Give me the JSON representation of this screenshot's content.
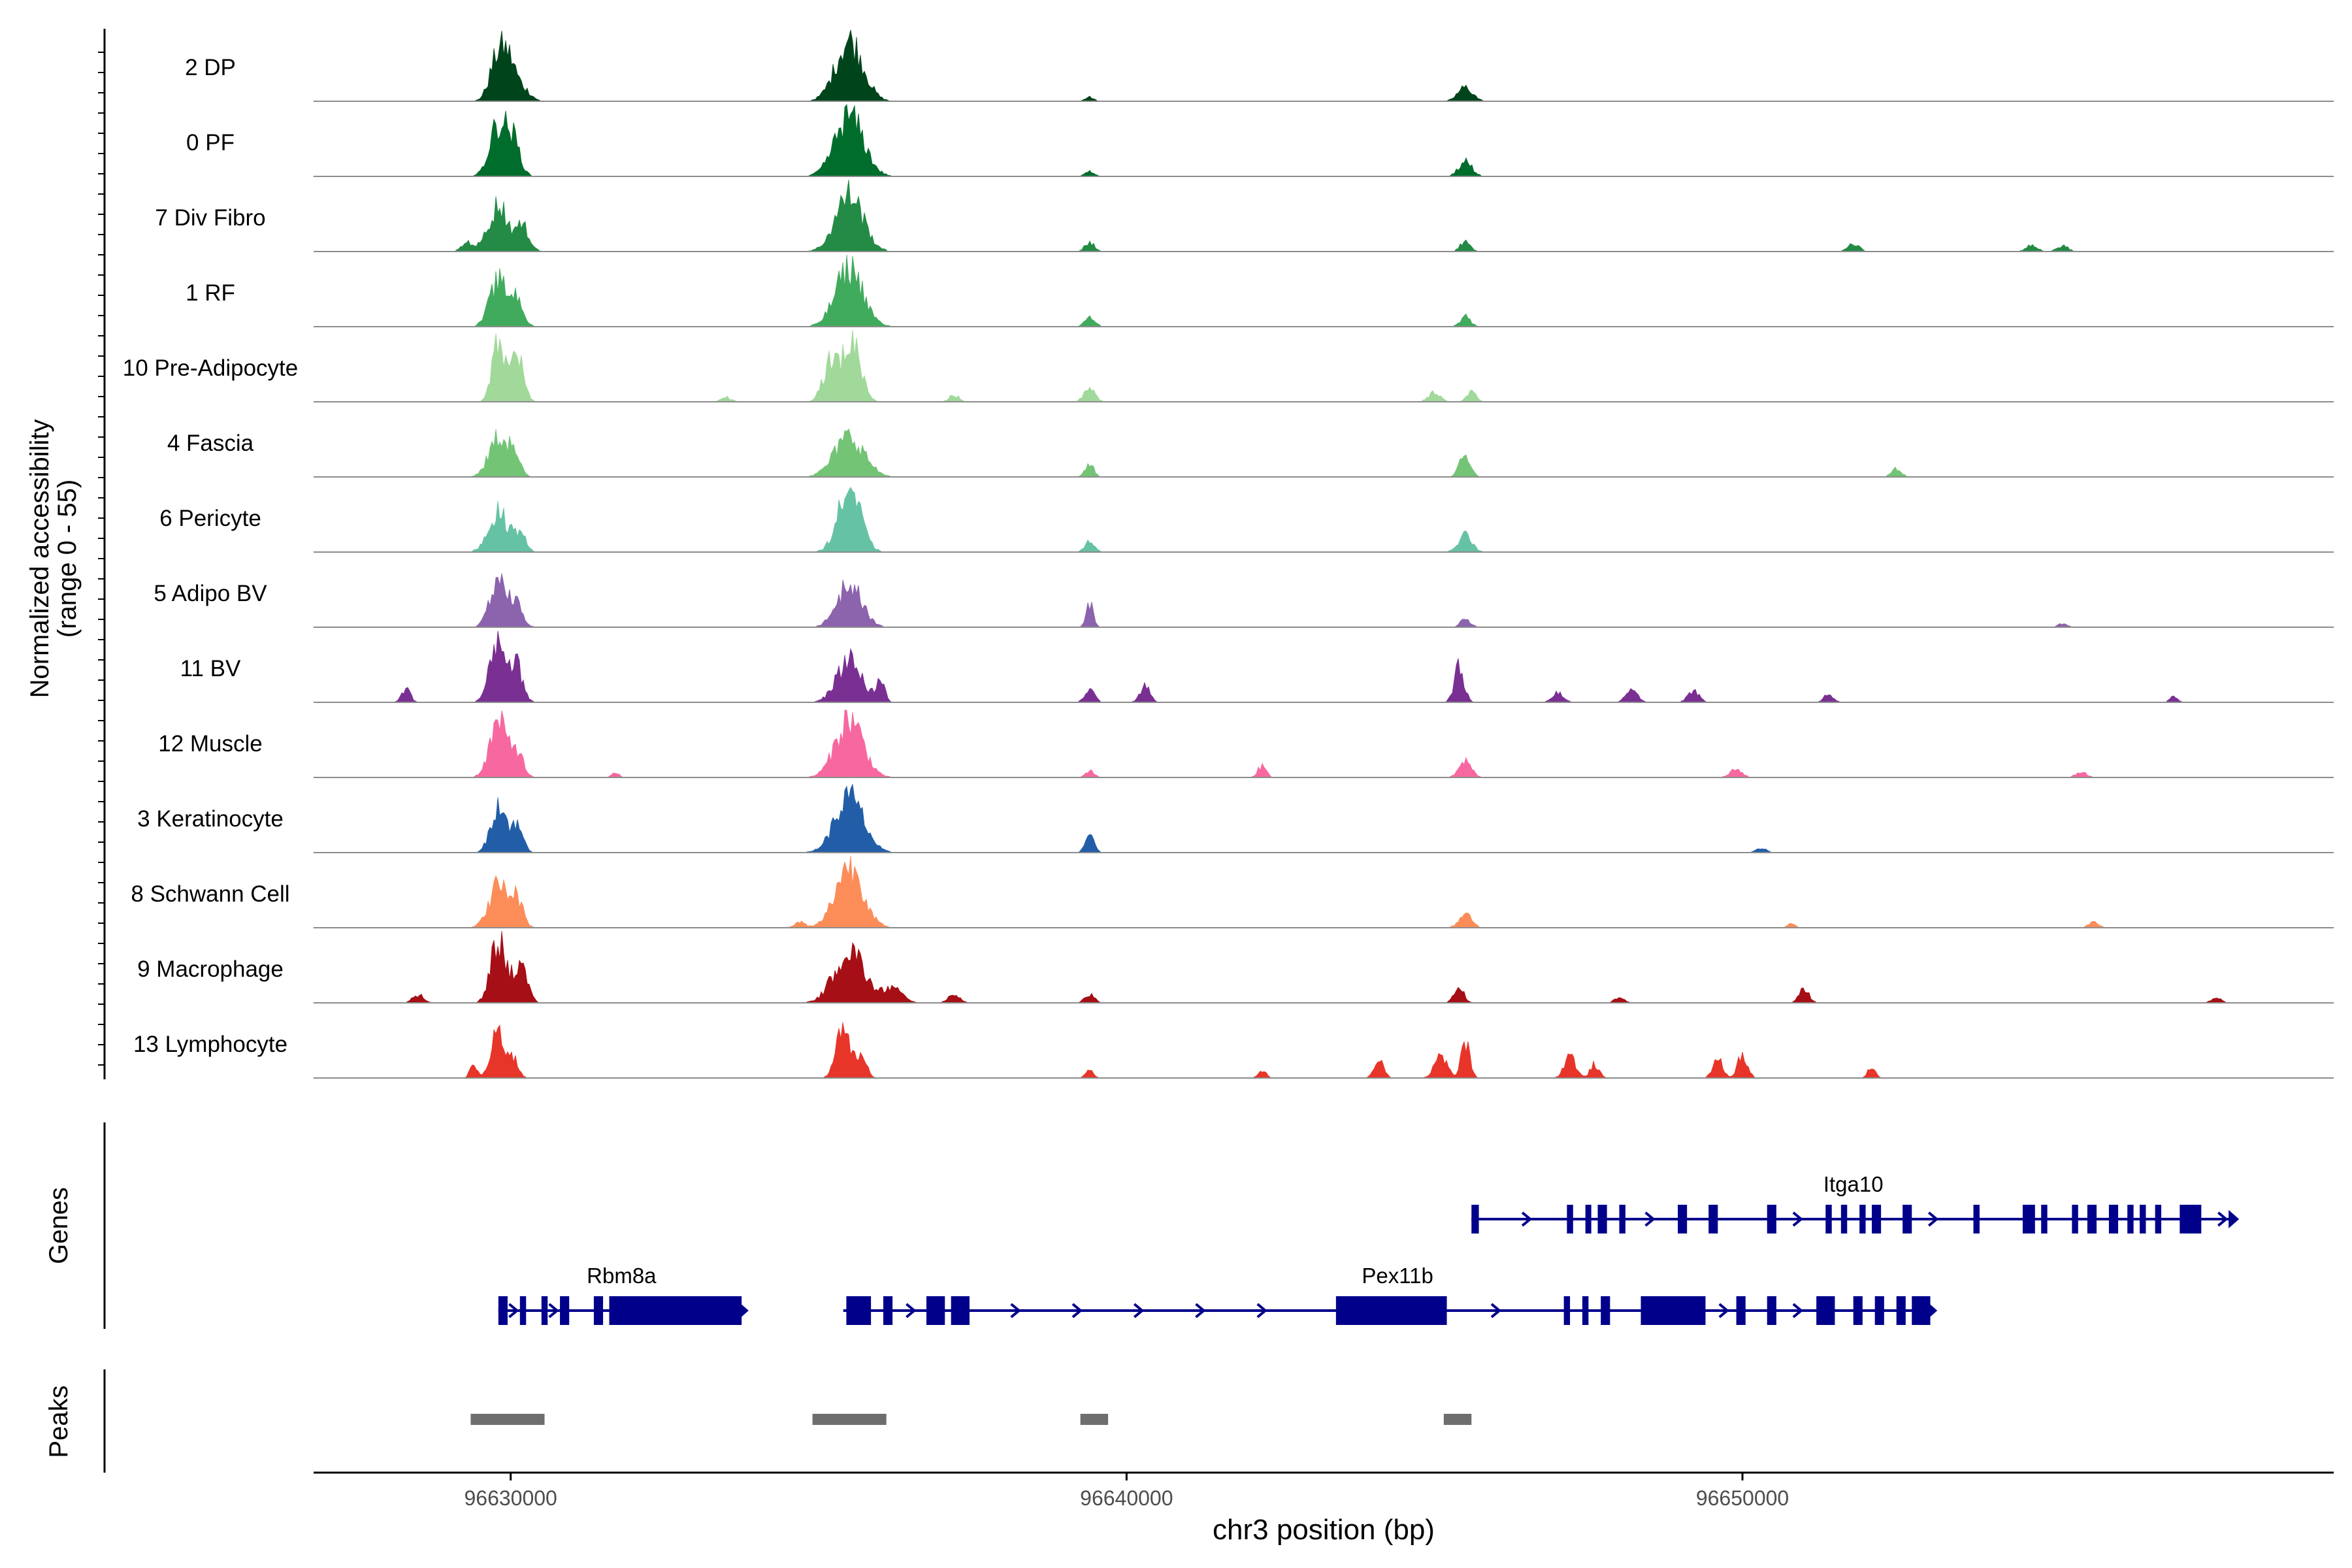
{
  "chart_data": {
    "type": "area",
    "title": "",
    "ylabel_line1": "Normalized accessibility",
    "ylabel_line2": "(range 0 - 55)",
    "xlabel": "chr3 position (bp)",
    "chromosome": "chr3",
    "y_range": [
      0,
      55
    ],
    "xlim": [
      96626800,
      96659600
    ],
    "x_ticks": [
      96630000,
      96640000,
      96650000
    ],
    "x_tick_labels": [
      "96630000",
      "96640000",
      "96650000"
    ],
    "tracks": [
      {
        "name": "2 DP",
        "color": "#00441b",
        "peaks": [
          [
            96629800,
            40,
            130
          ],
          [
            96630000,
            26,
            110
          ],
          [
            96630230,
            9,
            110
          ],
          [
            96635500,
            53,
            220
          ],
          [
            96639400,
            4,
            70
          ],
          [
            96645500,
            12,
            120
          ]
        ]
      },
      {
        "name": "0 PF",
        "color": "#006d2c",
        "peaks": [
          [
            96629800,
            45,
            140
          ],
          [
            96630050,
            27,
            110
          ],
          [
            96635500,
            52,
            230
          ],
          [
            96639400,
            5,
            70
          ],
          [
            96645500,
            13,
            110
          ]
        ]
      },
      {
        "name": "7 Div Fibro",
        "color": "#238b45",
        "peaks": [
          [
            96629300,
            8,
            90
          ],
          [
            96629800,
            40,
            160
          ],
          [
            96630200,
            20,
            110
          ],
          [
            96635500,
            50,
            220
          ],
          [
            96639400,
            8,
            80
          ],
          [
            96645500,
            9,
            80
          ],
          [
            96651800,
            6,
            100
          ],
          [
            96654700,
            6,
            90
          ],
          [
            96655200,
            5,
            90
          ]
        ]
      },
      {
        "name": "1 RF",
        "color": "#41ab5d",
        "peaks": [
          [
            96629800,
            39,
            140
          ],
          [
            96630100,
            24,
            100
          ],
          [
            96635500,
            51,
            220
          ],
          [
            96639400,
            10,
            80
          ],
          [
            96645500,
            9,
            80
          ]
        ]
      },
      {
        "name": "10 Pre-Adipocyte",
        "color": "#a1d99b",
        "peaks": [
          [
            96629800,
            50,
            100
          ],
          [
            96630100,
            44,
            100
          ],
          [
            96635200,
            34,
            130
          ],
          [
            96635550,
            52,
            140
          ],
          [
            96639400,
            11,
            90
          ],
          [
            96645000,
            8,
            100
          ],
          [
            96645600,
            8,
            80
          ],
          [
            96633500,
            4,
            80
          ],
          [
            96637200,
            6,
            80
          ]
        ]
      },
      {
        "name": "4 Fascia",
        "color": "#74c476",
        "peaks": [
          [
            96629800,
            34,
            150
          ],
          [
            96630050,
            17,
            100
          ],
          [
            96635500,
            35,
            240
          ],
          [
            96639400,
            11,
            70
          ],
          [
            96645500,
            19,
            90
          ],
          [
            96652500,
            8,
            80
          ]
        ]
      },
      {
        "name": "6 Pericyte",
        "color": "#66c2a5",
        "peaks": [
          [
            96629800,
            34,
            160
          ],
          [
            96630150,
            15,
            100
          ],
          [
            96635500,
            55,
            180
          ],
          [
            96639400,
            9,
            80
          ],
          [
            96645500,
            15,
            110
          ]
        ]
      },
      {
        "name": "5 Adipo BV",
        "color": "#8c63ad",
        "peaks": [
          [
            96629800,
            44,
            130
          ],
          [
            96630100,
            19,
            100
          ],
          [
            96635500,
            37,
            200
          ],
          [
            96639400,
            20,
            60
          ],
          [
            96645500,
            7,
            80
          ],
          [
            96655200,
            3,
            80
          ]
        ]
      },
      {
        "name": "11 BV",
        "color": "#7a3092",
        "peaks": [
          [
            96629800,
            55,
            130
          ],
          [
            96630100,
            30,
            100
          ],
          [
            96628300,
            12,
            70
          ],
          [
            96635500,
            37,
            200
          ],
          [
            96636000,
            18,
            70
          ],
          [
            96639400,
            11,
            80
          ],
          [
            96640300,
            14,
            80
          ],
          [
            96645400,
            30,
            80
          ],
          [
            96647000,
            8,
            90
          ],
          [
            96648200,
            12,
            90
          ],
          [
            96649200,
            10,
            90
          ],
          [
            96651400,
            7,
            80
          ],
          [
            96657000,
            6,
            60
          ]
        ]
      },
      {
        "name": "12 Muscle",
        "color": "#f768a1",
        "peaks": [
          [
            96629800,
            47,
            140
          ],
          [
            96630100,
            22,
            100
          ],
          [
            96635500,
            51,
            220
          ],
          [
            96631700,
            4,
            60
          ],
          [
            96639400,
            6,
            70
          ],
          [
            96642200,
            10,
            70
          ],
          [
            96645500,
            14,
            100
          ],
          [
            96649900,
            7,
            100
          ],
          [
            96655500,
            5,
            90
          ]
        ]
      },
      {
        "name": "3 Keratinocyte",
        "color": "#225ea8",
        "peaks": [
          [
            96629800,
            43,
            120
          ],
          [
            96630100,
            22,
            100
          ],
          [
            96635500,
            48,
            230
          ],
          [
            96639400,
            15,
            70
          ],
          [
            96650300,
            4,
            80
          ]
        ]
      },
      {
        "name": "8 Schwann Cell",
        "color": "#fc8d59",
        "peaks": [
          [
            96629800,
            37,
            150
          ],
          [
            96630100,
            24,
            100
          ],
          [
            96635500,
            55,
            220
          ],
          [
            96634700,
            5,
            80
          ],
          [
            96645500,
            12,
            100
          ],
          [
            96650800,
            4,
            60
          ],
          [
            96655700,
            5,
            80
          ]
        ]
      },
      {
        "name": "9 Macrophage",
        "color": "#a50f15",
        "peaks": [
          [
            96629800,
            55,
            120
          ],
          [
            96630150,
            33,
            110
          ],
          [
            96628500,
            7,
            90
          ],
          [
            96635500,
            46,
            240
          ],
          [
            96636200,
            13,
            150
          ],
          [
            96637200,
            8,
            90
          ],
          [
            96639400,
            7,
            80
          ],
          [
            96645400,
            13,
            80
          ],
          [
            96651000,
            12,
            80
          ],
          [
            96648000,
            5,
            80
          ],
          [
            96657700,
            5,
            80
          ]
        ]
      },
      {
        "name": "13 Lymphocyte",
        "color": "#e8352a",
        "peaks": [
          [
            96629800,
            40,
            110
          ],
          [
            96630050,
            15,
            80
          ],
          [
            96629400,
            11,
            60
          ],
          [
            96635400,
            46,
            110
          ],
          [
            96635700,
            18,
            80
          ],
          [
            96639400,
            7,
            60
          ],
          [
            96642200,
            7,
            60
          ],
          [
            96644100,
            14,
            80
          ],
          [
            96645100,
            20,
            100
          ],
          [
            96645500,
            30,
            70
          ],
          [
            96647200,
            20,
            90
          ],
          [
            96647600,
            12,
            70
          ],
          [
            96649600,
            16,
            80
          ],
          [
            96650000,
            20,
            80
          ],
          [
            96652100,
            10,
            60
          ]
        ]
      }
    ],
    "gene_track_label": "Genes",
    "genes": [
      {
        "name": "Itga10",
        "row": 1,
        "start": 96645600,
        "end": 96658000,
        "strand": "+",
        "exons": [
          [
            96645600,
            96645720
          ],
          [
            96647150,
            96647250
          ],
          [
            96647450,
            96647520
          ],
          [
            96647650,
            96647800
          ],
          [
            96648000,
            96648100
          ],
          [
            96648950,
            96649100
          ],
          [
            96649450,
            96649600
          ],
          [
            96650400,
            96650550
          ],
          [
            96651350,
            96651450
          ],
          [
            96651600,
            96651700
          ],
          [
            96651900,
            96652000
          ],
          [
            96652100,
            96652250
          ],
          [
            96652600,
            96652750
          ],
          [
            96653750,
            96653850
          ],
          [
            96654550,
            96654750
          ],
          [
            96654850,
            96654950
          ],
          [
            96655350,
            96655450
          ],
          [
            96655600,
            96655750
          ],
          [
            96655950,
            96656100
          ],
          [
            96656250,
            96656350
          ],
          [
            96656450,
            96656550
          ],
          [
            96656700,
            96656800
          ],
          [
            96657100,
            96657450
          ]
        ],
        "arrow_positions": [
          96646500,
          96648500,
          96650900,
          96653100,
          96657800
        ]
      },
      {
        "name": "Rbm8a",
        "row": 2,
        "start": 96629800,
        "end": 96633800,
        "strand": "+",
        "exons": [
          [
            96629800,
            96629950
          ],
          [
            96630150,
            96630250
          ],
          [
            96630500,
            96630600
          ],
          [
            96630800,
            96630950
          ],
          [
            96631350,
            96631500
          ],
          [
            96631600,
            96633750
          ]
        ],
        "arrow_positions": [
          96630050,
          96630700
        ]
      },
      {
        "name": "Pex11b",
        "row": 2,
        "start": 96635400,
        "end": 96653100,
        "strand": "+",
        "exons": [
          [
            96635450,
            96635850
          ],
          [
            96636050,
            96636200
          ],
          [
            96636750,
            96637050
          ],
          [
            96637150,
            96637450
          ],
          [
            96643400,
            96645200
          ],
          [
            96647100,
            96647200
          ],
          [
            96647400,
            96647500
          ],
          [
            96647700,
            96647850
          ],
          [
            96648350,
            96649400
          ],
          [
            96649900,
            96650050
          ],
          [
            96650400,
            96650550
          ],
          [
            96651200,
            96651500
          ],
          [
            96651800,
            96651950
          ],
          [
            96652150,
            96652300
          ],
          [
            96652500,
            96652650
          ],
          [
            96652750,
            96653050
          ]
        ],
        "arrow_positions": [
          96636500,
          96638200,
          96639200,
          96640200,
          96641200,
          96642200,
          96646000,
          96649700,
          96650900
        ]
      }
    ],
    "peak_track_label": "Peaks",
    "peak_regions": [
      [
        96629350,
        96630550
      ],
      [
        96634900,
        96636100
      ],
      [
        96639250,
        96639700
      ],
      [
        96645150,
        96645600
      ]
    ],
    "peak_color": "#6e6e6e",
    "gene_color": "#00008b"
  }
}
